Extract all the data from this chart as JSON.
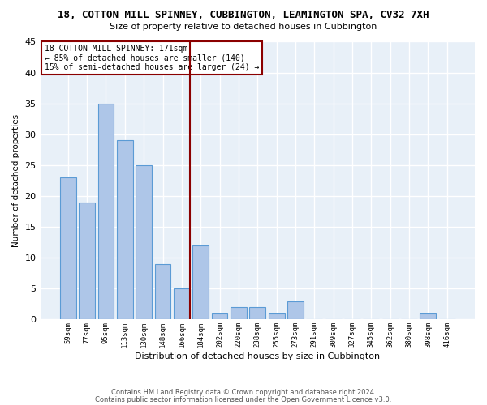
{
  "title": "18, COTTON MILL SPINNEY, CUBBINGTON, LEAMINGTON SPA, CV32 7XH",
  "subtitle": "Size of property relative to detached houses in Cubbington",
  "xlabel": "Distribution of detached houses by size in Cubbington",
  "ylabel": "Number of detached properties",
  "bar_color": "#aec6e8",
  "bar_edge_color": "#5b9bd5",
  "background_color": "#e8f0f8",
  "grid_color": "#ffffff",
  "categories": [
    "59sqm",
    "77sqm",
    "95sqm",
    "113sqm",
    "130sqm",
    "148sqm",
    "166sqm",
    "184sqm",
    "202sqm",
    "220sqm",
    "238sqm",
    "255sqm",
    "273sqm",
    "291sqm",
    "309sqm",
    "327sqm",
    "345sqm",
    "362sqm",
    "380sqm",
    "398sqm",
    "416sqm"
  ],
  "values": [
    23,
    19,
    35,
    29,
    25,
    9,
    5,
    12,
    1,
    2,
    2,
    1,
    3,
    0,
    0,
    0,
    0,
    0,
    0,
    1,
    0
  ],
  "ylim": [
    0,
    45
  ],
  "yticks": [
    0,
    5,
    10,
    15,
    20,
    25,
    30,
    35,
    40,
    45
  ],
  "property_line_color": "#8b0000",
  "annotation_text": "18 COTTON MILL SPINNEY: 171sqm\n← 85% of detached houses are smaller (140)\n15% of semi-detached houses are larger (24) →",
  "annotation_box_color": "#8b0000",
  "footer1": "Contains HM Land Registry data © Crown copyright and database right 2024.",
  "footer2": "Contains public sector information licensed under the Open Government Licence v3.0."
}
